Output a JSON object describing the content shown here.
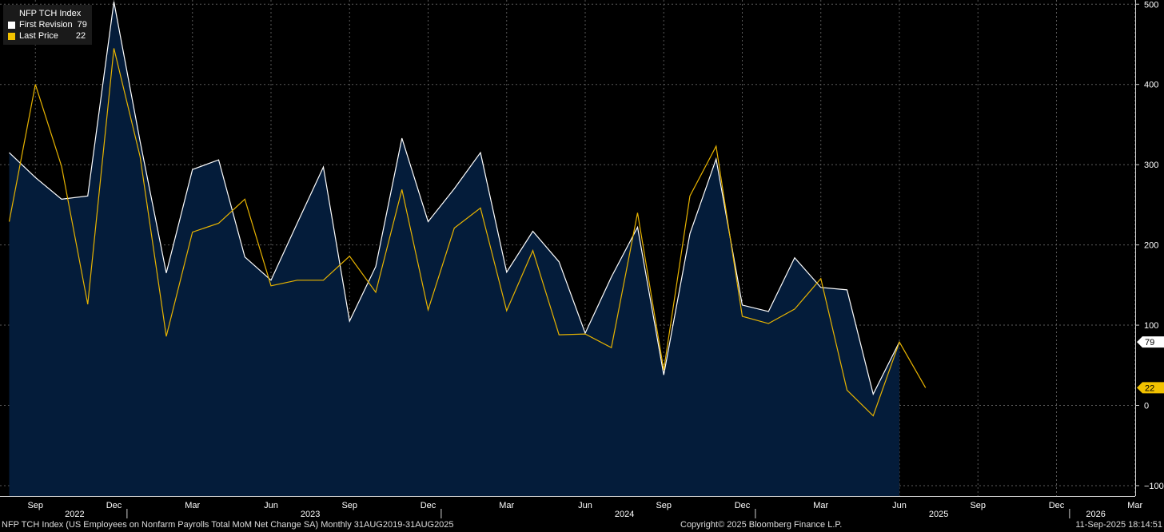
{
  "legend": {
    "title": "NFP TCH Index",
    "items": [
      {
        "label": "First Revision",
        "value": "79",
        "color": "#ffffff"
      },
      {
        "label": "Last Price",
        "value": "22",
        "color": "#f2c200"
      }
    ]
  },
  "footer": {
    "description": "NFP TCH Index (US Employees on Nonfarm Payrolls Total MoM Net Change SA)  Monthly 31AUG2019-31AUG2025",
    "copyright": "Copyright© 2025 Bloomberg Finance L.P.",
    "timestamp": "11-Sep-2025 18:14:51"
  },
  "chart_data": {
    "type": "line",
    "ylim": [
      -100,
      500
    ],
    "yticks": [
      -100,
      0,
      100,
      200,
      300,
      400,
      500
    ],
    "x_range": [
      "2022-08",
      "2026-04"
    ],
    "x_month_start": "2022-08",
    "month_ticks": [
      {
        "label": "Sep",
        "month_index": 1
      },
      {
        "label": "Dec",
        "month_index": 4
      },
      {
        "label": "Mar",
        "month_index": 7
      },
      {
        "label": "Jun",
        "month_index": 10
      },
      {
        "label": "Sep",
        "month_index": 13
      },
      {
        "label": "Dec",
        "month_index": 16
      },
      {
        "label": "Mar",
        "month_index": 19
      },
      {
        "label": "Jun",
        "month_index": 22
      },
      {
        "label": "Sep",
        "month_index": 25
      },
      {
        "label": "Dec",
        "month_index": 28
      },
      {
        "label": "Mar",
        "month_index": 31
      },
      {
        "label": "Jun",
        "month_index": 34
      },
      {
        "label": "Sep",
        "month_index": 37
      },
      {
        "label": "Dec",
        "month_index": 40
      },
      {
        "label": "Mar",
        "month_index": 43
      }
    ],
    "year_labels": [
      {
        "label": "2022",
        "month_index": 2.5
      },
      {
        "label": "2023",
        "month_index": 11.5
      },
      {
        "label": "2024",
        "month_index": 23.5
      },
      {
        "label": "2025",
        "month_index": 35.5
      },
      {
        "label": "2026",
        "month_index": 41.5
      }
    ],
    "year_boundaries": [
      5,
      17,
      29,
      41
    ],
    "series": [
      {
        "name": "First Revision",
        "color": "#ffffff",
        "fill": "#041c3a",
        "last_value": "79",
        "x_start_index": 0,
        "values": [
          315,
          284,
          257,
          261,
          503,
          329,
          165,
          294,
          306,
          185,
          156,
          227,
          297,
          105,
          173,
          333,
          229,
          270,
          315,
          166,
          217,
          179,
          90,
          160,
          222,
          38,
          214,
          307,
          125,
          117,
          184,
          147,
          144,
          14,
          79
        ]
      },
      {
        "name": "Last Price",
        "color": "#e8b400",
        "last_value": "22",
        "x_start_index": 0,
        "values": [
          229,
          400,
          298,
          126,
          445,
          310,
          86,
          216,
          227,
          257,
          149,
          156,
          156,
          186,
          141,
          269,
          119,
          221,
          246,
          118,
          193,
          88,
          89,
          72,
          240,
          44,
          261,
          323,
          111,
          102,
          120,
          158,
          19,
          -13,
          79,
          22
        ]
      }
    ]
  }
}
